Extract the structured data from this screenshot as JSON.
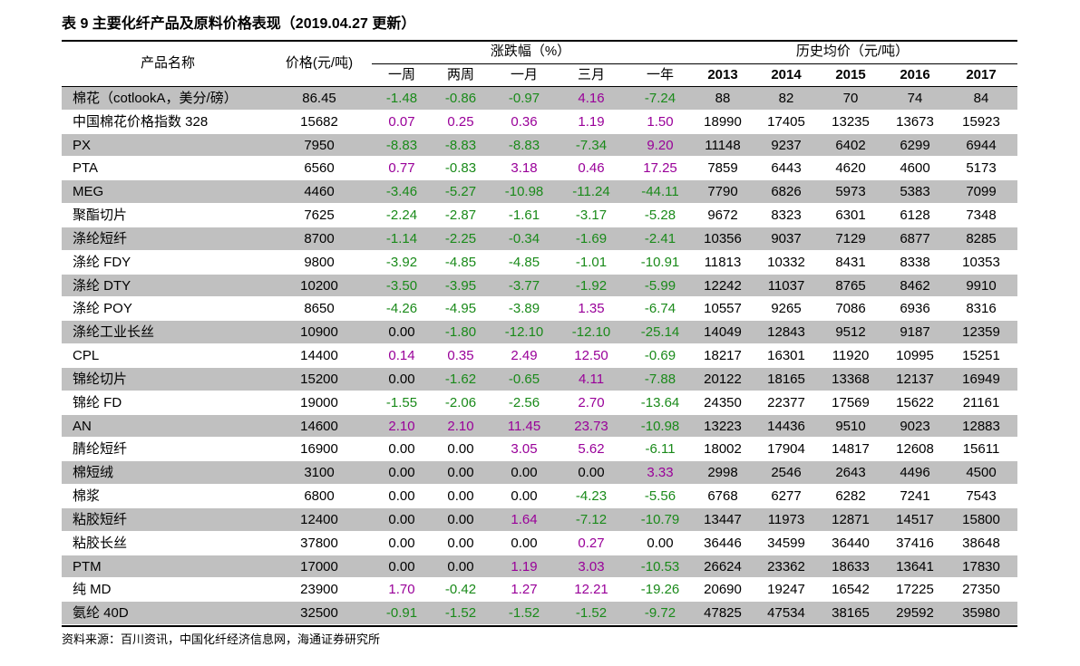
{
  "header": {
    "title": "表 9 主要化纤产品及原料价格表现（2019.04.27 更新）"
  },
  "table": {
    "head": {
      "name": "产品名称",
      "price": "价格(元/吨)",
      "change_group": "涨跌幅（%）",
      "history_group": "历史均价（元/吨）",
      "columns": [
        "一周",
        "两周",
        "一月",
        "三月",
        "一年",
        "2013",
        "2014",
        "2015",
        "2016",
        "2017"
      ]
    },
    "rows": [
      [
        "棉花（cotlookA，美分/磅）",
        "86.45",
        "-1.48",
        "-0.86",
        "-0.97",
        "4.16",
        "-7.24",
        "88",
        "82",
        "70",
        "74",
        "84"
      ],
      [
        "中国棉花价格指数 328",
        "15682",
        "0.07",
        "0.25",
        "0.36",
        "1.19",
        "1.50",
        "18990",
        "17405",
        "13235",
        "13673",
        "15923"
      ],
      [
        "PX",
        "7950",
        "-8.83",
        "-8.83",
        "-8.83",
        "-7.34",
        "9.20",
        "11148",
        "9237",
        "6402",
        "6299",
        "6944"
      ],
      [
        "PTA",
        "6560",
        "0.77",
        "-0.83",
        "3.18",
        "0.46",
        "17.25",
        "7859",
        "6443",
        "4620",
        "4600",
        "5173"
      ],
      [
        "MEG",
        "4460",
        "-3.46",
        "-5.27",
        "-10.98",
        "-11.24",
        "-44.11",
        "7790",
        "6826",
        "5973",
        "5383",
        "7099"
      ],
      [
        "聚酯切片",
        "7625",
        "-2.24",
        "-2.87",
        "-1.61",
        "-3.17",
        "-5.28",
        "9672",
        "8323",
        "6301",
        "6128",
        "7348"
      ],
      [
        "涤纶短纤",
        "8700",
        "-1.14",
        "-2.25",
        "-0.34",
        "-1.69",
        "-2.41",
        "10356",
        "9037",
        "7129",
        "6877",
        "8285"
      ],
      [
        "涤纶 FDY",
        "9800",
        "-3.92",
        "-4.85",
        "-4.85",
        "-1.01",
        "-10.91",
        "11813",
        "10332",
        "8431",
        "8338",
        "10353"
      ],
      [
        "涤纶 DTY",
        "10200",
        "-3.50",
        "-3.95",
        "-3.77",
        "-1.92",
        "-5.99",
        "12242",
        "11037",
        "8765",
        "8462",
        "9910"
      ],
      [
        "涤纶 POY",
        "8650",
        "-4.26",
        "-4.95",
        "-3.89",
        "1.35",
        "-6.74",
        "10557",
        "9265",
        "7086",
        "6936",
        "8316"
      ],
      [
        "涤纶工业长丝",
        "10900",
        "0.00",
        "-1.80",
        "-12.10",
        "-12.10",
        "-25.14",
        "14049",
        "12843",
        "9512",
        "9187",
        "12359"
      ],
      [
        "CPL",
        "14400",
        "0.14",
        "0.35",
        "2.49",
        "12.50",
        "-0.69",
        "18217",
        "16301",
        "11920",
        "10995",
        "15251"
      ],
      [
        "锦纶切片",
        "15200",
        "0.00",
        "-1.62",
        "-0.65",
        "4.11",
        "-7.88",
        "20122",
        "18165",
        "13368",
        "12137",
        "16949"
      ],
      [
        "锦纶 FD",
        "19000",
        "-1.55",
        "-2.06",
        "-2.56",
        "2.70",
        "-13.64",
        "24350",
        "22377",
        "17569",
        "15622",
        "21161"
      ],
      [
        "AN",
        "14600",
        "2.10",
        "2.10",
        "11.45",
        "23.73",
        "-10.98",
        "13223",
        "14436",
        "9510",
        "9023",
        "12883"
      ],
      [
        "腈纶短纤",
        "16900",
        "0.00",
        "0.00",
        "3.05",
        "5.62",
        "-6.11",
        "18002",
        "17904",
        "14817",
        "12608",
        "15611"
      ],
      [
        "棉短绒",
        "3100",
        "0.00",
        "0.00",
        "0.00",
        "0.00",
        "3.33",
        "2998",
        "2546",
        "2643",
        "4496",
        "4500"
      ],
      [
        "棉浆",
        "6800",
        "0.00",
        "0.00",
        "0.00",
        "-4.23",
        "-5.56",
        "6768",
        "6277",
        "6282",
        "7241",
        "7543"
      ],
      [
        "粘胶短纤",
        "12400",
        "0.00",
        "0.00",
        "1.64",
        "-7.12",
        "-10.79",
        "13447",
        "11973",
        "12871",
        "14517",
        "15800"
      ],
      [
        "粘胶长丝",
        "37800",
        "0.00",
        "0.00",
        "0.00",
        "0.27",
        "0.00",
        "36446",
        "34599",
        "36440",
        "37416",
        "38648"
      ],
      [
        "PTM",
        "17000",
        "0.00",
        "0.00",
        "1.19",
        "3.03",
        "-10.53",
        "26624",
        "23362",
        "18633",
        "13641",
        "17830"
      ],
      [
        "纯 MD",
        "23900",
        "1.70",
        "-0.42",
        "1.27",
        "12.21",
        "-19.26",
        "20690",
        "19247",
        "16542",
        "17225",
        "27350"
      ],
      [
        "氨纶 40D",
        "32500",
        "-0.91",
        "-1.52",
        "-1.52",
        "-1.52",
        "-9.72",
        "47825",
        "47534",
        "38165",
        "29592",
        "35980"
      ]
    ]
  },
  "footer": {
    "source": "资料来源：百川资讯，中国化纤经济信息网，海通证券研究所"
  }
}
